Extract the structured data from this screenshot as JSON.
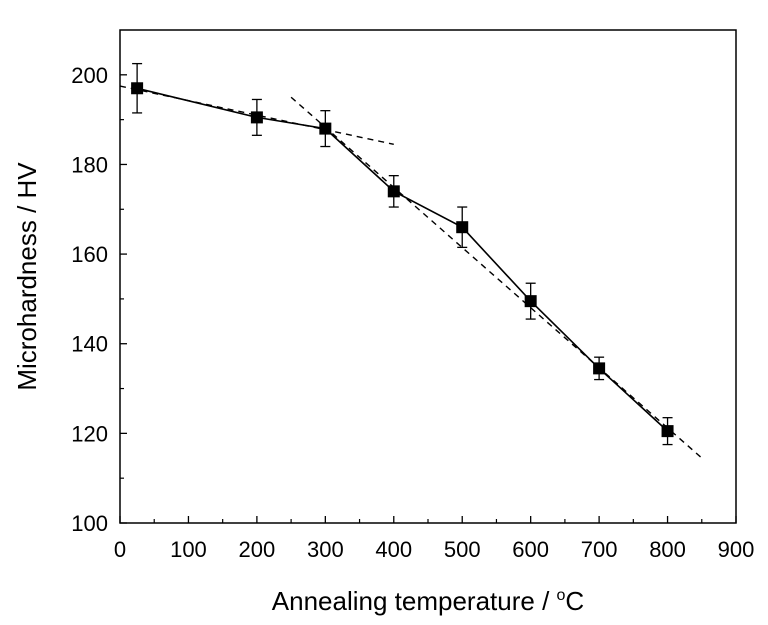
{
  "chart_data": {
    "type": "line",
    "title": "",
    "xlabel": "Annealing temperature / ",
    "xlabel_unit_sup": "o",
    "xlabel_unit": "C",
    "ylabel": "Microhardness / HV",
    "xlim": [
      0,
      900
    ],
    "ylim": [
      100,
      210
    ],
    "xticks": [
      0,
      100,
      200,
      300,
      400,
      500,
      600,
      700,
      800,
      900
    ],
    "yticks": [
      100,
      120,
      140,
      160,
      180,
      200
    ],
    "grid": false,
    "legend": "none",
    "series": [
      {
        "style": "solid-square-markers",
        "color": "#000000",
        "x": [
          25,
          200,
          300,
          400,
          500,
          600,
          700,
          800
        ],
        "y": [
          197,
          190.5,
          188,
          174,
          166,
          149.5,
          134.5,
          120.5
        ],
        "yerr": [
          5.5,
          4,
          4,
          3.5,
          4.5,
          4,
          2.5,
          3
        ]
      }
    ],
    "fit_lines": [
      {
        "style": "dashed",
        "x": [
          0,
          400
        ],
        "y": [
          197.5,
          184.5
        ]
      },
      {
        "style": "dashed",
        "x": [
          250,
          850
        ],
        "y": [
          195,
          114.5
        ]
      }
    ]
  }
}
